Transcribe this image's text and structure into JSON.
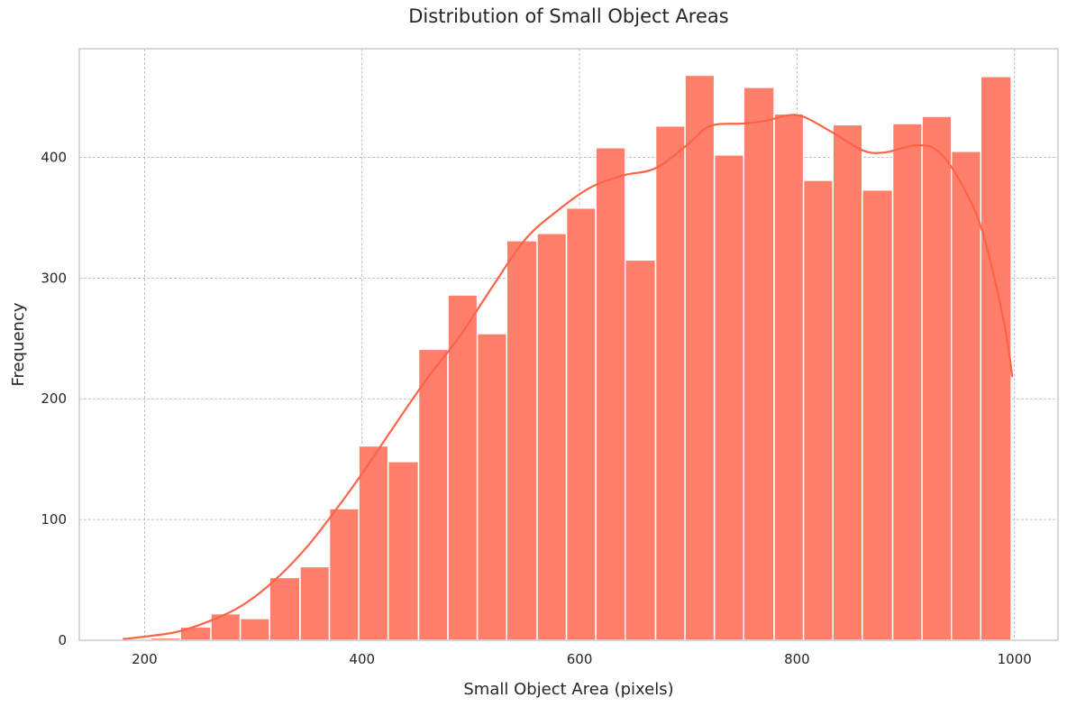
{
  "chart_data": {
    "type": "bar",
    "title": "Distribution of Small Object Areas",
    "xlabel": "Small Object Area (pixels)",
    "ylabel": "Frequency",
    "xlim": [
      140,
      1040
    ],
    "ylim": [
      0,
      490
    ],
    "xticks": [
      200,
      400,
      600,
      800,
      1000
    ],
    "yticks": [
      0,
      100,
      200,
      300,
      400
    ],
    "grid": true,
    "bins": [
      {
        "x0": 179,
        "x1": 206,
        "value": 1
      },
      {
        "x0": 206,
        "x1": 233,
        "value": 2
      },
      {
        "x0": 233,
        "x1": 261,
        "value": 11
      },
      {
        "x0": 261,
        "x1": 288,
        "value": 22
      },
      {
        "x0": 288,
        "x1": 315,
        "value": 18
      },
      {
        "x0": 315,
        "x1": 343,
        "value": 52
      },
      {
        "x0": 343,
        "x1": 370,
        "value": 61
      },
      {
        "x0": 370,
        "x1": 397,
        "value": 109
      },
      {
        "x0": 397,
        "x1": 424,
        "value": 161
      },
      {
        "x0": 424,
        "x1": 452,
        "value": 148
      },
      {
        "x0": 452,
        "x1": 479,
        "value": 241
      },
      {
        "x0": 479,
        "x1": 506,
        "value": 286
      },
      {
        "x0": 506,
        "x1": 533,
        "value": 254
      },
      {
        "x0": 533,
        "x1": 561,
        "value": 331
      },
      {
        "x0": 561,
        "x1": 588,
        "value": 337
      },
      {
        "x0": 588,
        "x1": 615,
        "value": 358
      },
      {
        "x0": 615,
        "x1": 642,
        "value": 408
      },
      {
        "x0": 642,
        "x1": 670,
        "value": 315
      },
      {
        "x0": 670,
        "x1": 697,
        "value": 426
      },
      {
        "x0": 697,
        "x1": 724,
        "value": 468
      },
      {
        "x0": 724,
        "x1": 751,
        "value": 402
      },
      {
        "x0": 751,
        "x1": 779,
        "value": 458
      },
      {
        "x0": 779,
        "x1": 806,
        "value": 436
      },
      {
        "x0": 806,
        "x1": 833,
        "value": 381
      },
      {
        "x0": 833,
        "x1": 860,
        "value": 427
      },
      {
        "x0": 860,
        "x1": 888,
        "value": 373
      },
      {
        "x0": 888,
        "x1": 915,
        "value": 428
      },
      {
        "x0": 915,
        "x1": 942,
        "value": 434
      },
      {
        "x0": 942,
        "x1": 969,
        "value": 405
      },
      {
        "x0": 969,
        "x1": 997,
        "value": 467
      }
    ],
    "kde": {
      "x": [
        180,
        200,
        230,
        260,
        290,
        320,
        350,
        380,
        400,
        430,
        460,
        490,
        520,
        550,
        580,
        610,
        640,
        670,
        700,
        720,
        750,
        770,
        800,
        830,
        860,
        880,
        910,
        930,
        950,
        970,
        990,
        998
      ],
      "y": [
        1,
        3,
        7,
        16,
        29,
        50,
        78,
        113,
        138,
        178,
        217,
        252,
        293,
        332,
        356,
        375,
        385,
        391,
        411,
        426,
        428,
        430,
        435,
        422,
        406,
        404,
        410,
        405,
        380,
        340,
        265,
        218
      ]
    },
    "colors": {
      "bar": "#ff7f6b",
      "kde": "#ff6347",
      "background": "#ffffff"
    }
  }
}
